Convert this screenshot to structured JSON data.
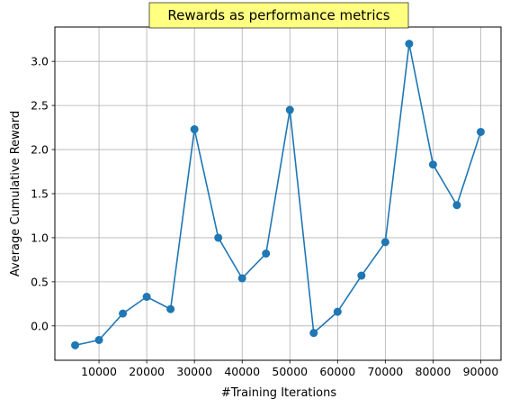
{
  "chart_data": {
    "type": "line",
    "title": "Rewards as performance metrics",
    "xlabel": "#Training Iterations",
    "ylabel": "Average Cumulative Reward",
    "xlim": [
      750,
      94250
    ],
    "ylim": [
      -0.39,
      3.39
    ],
    "xticks": [
      10000,
      20000,
      30000,
      40000,
      50000,
      60000,
      70000,
      80000,
      90000
    ],
    "xtick_labels": [
      "10000",
      "20000",
      "30000",
      "40000",
      "50000",
      "60000",
      "70000",
      "80000",
      "90000"
    ],
    "yticks": [
      0.0,
      0.5,
      1.0,
      1.5,
      2.0,
      2.5,
      3.0
    ],
    "ytick_labels": [
      "0.0",
      "0.5",
      "1.0",
      "1.5",
      "2.0",
      "2.5",
      "3.0"
    ],
    "grid": true,
    "colors": {
      "series": "#1f77b4",
      "title_box": "#ffff80",
      "grid": "#b0b0b0"
    },
    "series": [
      {
        "x": [
          5000,
          10000,
          15000,
          20000,
          25000,
          30000,
          35000,
          40000,
          45000,
          50000,
          55000,
          60000,
          65000,
          70000,
          75000,
          80000,
          85000,
          90000
        ],
        "values": [
          -0.22,
          -0.16,
          0.14,
          0.33,
          0.19,
          2.23,
          1.0,
          0.54,
          0.82,
          2.45,
          -0.08,
          0.16,
          0.57,
          0.95,
          3.2,
          1.83,
          1.37,
          2.2
        ]
      }
    ]
  }
}
